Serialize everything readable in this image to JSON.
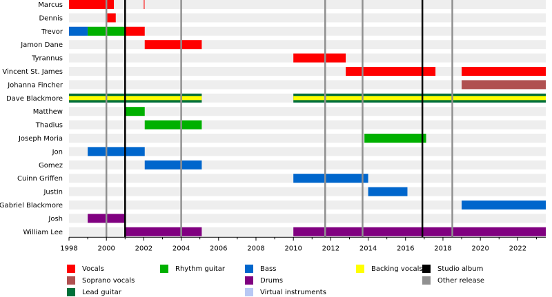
{
  "chart_data": {
    "type": "timeline",
    "title": "",
    "x_range": [
      1998,
      2023.5
    ],
    "x_ticks": [
      1998,
      2000,
      2002,
      2004,
      2006,
      2008,
      2010,
      2012,
      2014,
      2016,
      2018,
      2020,
      2022
    ],
    "colors": {
      "vocals": "#ff0000",
      "soprano": "#b05050",
      "lead_guitar": "#00703a",
      "rhythm_guitar": "#00b000",
      "bass": "#0066cc",
      "drums": "#800080",
      "virtual": "#b8c8f4",
      "backing": "#ffff00",
      "studio": "#000000",
      "other": "#909090",
      "stripe": "#eeeeee"
    },
    "members": [
      {
        "name": "Marcus",
        "bars": [
          {
            "role": "vocals",
            "start": 1998,
            "end": 2000.4
          },
          {
            "role": "vocals",
            "start": 2002.0,
            "end": 2002.04
          }
        ]
      },
      {
        "name": "Dennis",
        "bars": [
          {
            "role": "vocals",
            "start": 2000.05,
            "end": 2000.5
          }
        ]
      },
      {
        "name": "Trevor",
        "bars": [
          {
            "role": "bass",
            "start": 1998,
            "end": 1999.0
          },
          {
            "role": "rhythm_guitar",
            "start": 1999.0,
            "end": 2001.0
          },
          {
            "role": "vocals",
            "start": 2001.0,
            "end": 2002.05
          }
        ]
      },
      {
        "name": "Jamon Dane",
        "bars": [
          {
            "role": "vocals",
            "start": 2002.05,
            "end": 2005.1
          }
        ]
      },
      {
        "name": "Tyrannus",
        "bars": [
          {
            "role": "vocals",
            "start": 2010.0,
            "end": 2012.8
          }
        ]
      },
      {
        "name": "Vincent St. James",
        "bars": [
          {
            "role": "vocals",
            "start": 2012.8,
            "end": 2017.6
          },
          {
            "role": "vocals",
            "start": 2019.0,
            "end": 2023.5
          }
        ]
      },
      {
        "name": "Johanna Fincher",
        "bars": [
          {
            "role": "soprano",
            "start": 2019.0,
            "end": 2023.5
          }
        ]
      },
      {
        "name": "Dave Blackmore",
        "bars": [
          {
            "role": "lead_backing",
            "start": 1998,
            "end": 2005.1
          },
          {
            "role": "lead_backing",
            "start": 2010.0,
            "end": 2023.5
          }
        ]
      },
      {
        "name": "Matthew",
        "bars": [
          {
            "role": "rhythm_guitar",
            "start": 2001.0,
            "end": 2002.05
          }
        ]
      },
      {
        "name": "Thadius",
        "bars": [
          {
            "role": "rhythm_guitar",
            "start": 2002.05,
            "end": 2005.1
          }
        ]
      },
      {
        "name": "Joseph Moria",
        "bars": [
          {
            "role": "rhythm_guitar",
            "start": 2013.8,
            "end": 2017.1
          }
        ]
      },
      {
        "name": "Jon",
        "bars": [
          {
            "role": "bass",
            "start": 1999.0,
            "end": 2002.05
          }
        ]
      },
      {
        "name": "Gomez",
        "bars": [
          {
            "role": "bass",
            "start": 2002.05,
            "end": 2005.1
          }
        ]
      },
      {
        "name": "Cuinn Griffen",
        "bars": [
          {
            "role": "bass",
            "start": 2010.0,
            "end": 2014.0
          }
        ]
      },
      {
        "name": "Justin",
        "bars": [
          {
            "role": "bass",
            "start": 2014.0,
            "end": 2016.1
          }
        ]
      },
      {
        "name": "Gabriel Blackmore",
        "bars": [
          {
            "role": "bass",
            "start": 2019.0,
            "end": 2023.5
          }
        ]
      },
      {
        "name": "Josh",
        "bars": [
          {
            "role": "drums",
            "start": 1999.0,
            "end": 2001.0
          }
        ]
      },
      {
        "name": "William Lee",
        "bars": [
          {
            "role": "drums",
            "start": 2001.0,
            "end": 2005.1
          },
          {
            "role": "drums",
            "start": 2010.0,
            "end": 2023.5
          }
        ]
      }
    ],
    "studio_albums": [
      2001.0,
      2016.9
    ],
    "other_releases": [
      2000.0,
      2004.0,
      2011.7,
      2013.7,
      2018.5
    ],
    "legend": [
      {
        "label": "Vocals",
        "color": "#ff0000"
      },
      {
        "label": "Soprano vocals",
        "color": "#b05050"
      },
      {
        "label": "Lead guitar",
        "color": "#00703a"
      },
      {
        "label": "Rhythm guitar",
        "color": "#00b000"
      },
      {
        "label": "Bass",
        "color": "#0066cc"
      },
      {
        "label": "Drums",
        "color": "#800080"
      },
      {
        "label": "Virtual instruments",
        "color": "#b8c8f4"
      },
      {
        "label": "Backing vocals",
        "color": "#ffff00"
      },
      {
        "label": "Studio album",
        "color": "#000000"
      },
      {
        "label": "Other release",
        "color": "#909090"
      }
    ]
  }
}
